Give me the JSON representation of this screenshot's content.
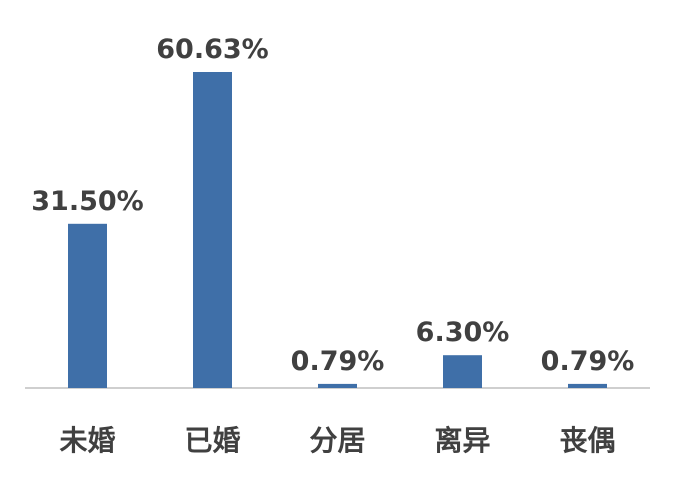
{
  "chart_data": {
    "type": "bar",
    "categories": [
      "未婚",
      "已婚",
      "分居",
      "离异",
      "丧偶"
    ],
    "values": [
      31.5,
      60.63,
      0.79,
      6.3,
      0.79
    ],
    "value_labels": [
      "31.50%",
      "60.63%",
      "0.79%",
      "6.30%",
      "0.79%"
    ],
    "title": "",
    "xlabel": "",
    "ylabel": "",
    "ylim": [
      0,
      60.63
    ],
    "grid": false,
    "legend": "none",
    "colors": {
      "bar": "#3F6FA8",
      "label": "#404040",
      "axis": "#BFBFBF"
    }
  }
}
